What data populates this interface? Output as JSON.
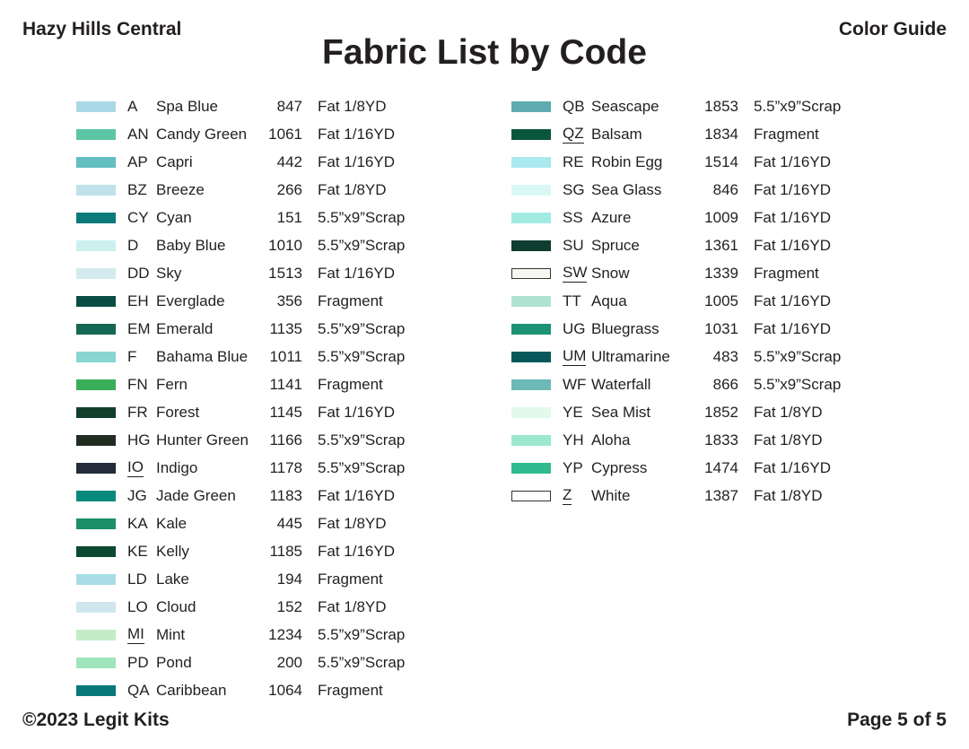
{
  "header": {
    "brand": "Hazy Hills Central",
    "guide": "Color Guide",
    "title": "Fabric List by Code"
  },
  "footer": {
    "copyright": "©2023 Legit Kits",
    "page": "Page 5 of 5"
  },
  "columns": [
    [
      {
        "code": "A",
        "name": "Spa Blue",
        "number": "847",
        "size": "Fat 1/8YD",
        "color": "#abd9e8"
      },
      {
        "code": "AN",
        "name": "Candy Green",
        "number": "1061",
        "size": "Fat 1/16YD",
        "color": "#5cc5a3"
      },
      {
        "code": "AP",
        "name": "Capri",
        "number": "442",
        "size": "Fat 1/16YD",
        "color": "#63c0c0"
      },
      {
        "code": "BZ",
        "name": "Breeze",
        "number": "266",
        "size": "Fat 1/8YD",
        "color": "#bfe2ea"
      },
      {
        "code": "CY",
        "name": "Cyan",
        "number": "151",
        "size": "5.5”x9”Scrap",
        "color": "#0a7b7a"
      },
      {
        "code": "D",
        "name": "Baby Blue",
        "number": "1010",
        "size": "5.5”x9”Scrap",
        "color": "#ccf0f0"
      },
      {
        "code": "DD",
        "name": "Sky",
        "number": "1513",
        "size": "Fat 1/16YD",
        "color": "#d3ebee"
      },
      {
        "code": "EH",
        "name": "Everglade",
        "number": "356",
        "size": "Fragment",
        "color": "#0a4d44"
      },
      {
        "code": "EM",
        "name": "Emerald",
        "number": "1135",
        "size": "5.5”x9”Scrap",
        "color": "#146752"
      },
      {
        "code": "F",
        "name": "Bahama Blue",
        "number": "1011",
        "size": "5.5”x9”Scrap",
        "color": "#88d6d1"
      },
      {
        "code": "FN",
        "name": "Fern",
        "number": "1141",
        "size": "Fragment",
        "color": "#3aae58"
      },
      {
        "code": "FR",
        "name": "Forest",
        "number": "1145",
        "size": "Fat 1/16YD",
        "color": "#123f2c"
      },
      {
        "code": "HG",
        "name": "Hunter Green",
        "number": "1166",
        "size": "5.5”x9”Scrap",
        "color": "#222d22"
      },
      {
        "code": "IO",
        "name": "Indigo",
        "number": "1178",
        "size": "5.5”x9”Scrap",
        "color": "#232c38",
        "underline": true
      },
      {
        "code": "JG",
        "name": "Jade Green",
        "number": "1183",
        "size": "Fat 1/16YD",
        "color": "#078a7b"
      },
      {
        "code": "KA",
        "name": "Kale",
        "number": "445",
        "size": "Fat 1/8YD",
        "color": "#1b8e68"
      },
      {
        "code": "KE",
        "name": "Kelly",
        "number": "1185",
        "size": "Fat 1/16YD",
        "color": "#0c4931"
      },
      {
        "code": "LD",
        "name": "Lake",
        "number": "194",
        "size": "Fragment",
        "color": "#a8dde6"
      },
      {
        "code": "LO",
        "name": "Cloud",
        "number": "152",
        "size": "Fat 1/8YD",
        "color": "#cfe6ee"
      },
      {
        "code": "MI",
        "name": "Mint",
        "number": "1234",
        "size": "5.5”x9”Scrap",
        "color": "#c3ecc6",
        "underline": true
      },
      {
        "code": "PD",
        "name": "Pond",
        "number": "200",
        "size": "5.5”x9”Scrap",
        "color": "#9fe4bc"
      },
      {
        "code": "QA",
        "name": "Caribbean",
        "number": "1064",
        "size": "Fragment",
        "color": "#0a7878"
      }
    ],
    [
      {
        "code": "QB",
        "name": "Seascape",
        "number": "1853",
        "size": "5.5”x9”Scrap",
        "color": "#5eabb0"
      },
      {
        "code": "QZ",
        "name": "Balsam",
        "number": "1834",
        "size": "Fragment",
        "color": "#0a553d",
        "underline": true
      },
      {
        "code": "RE",
        "name": "Robin Egg",
        "number": "1514",
        "size": "Fat 1/16YD",
        "color": "#a9e9f0"
      },
      {
        "code": "SG",
        "name": "Sea Glass",
        "number": "846",
        "size": "Fat 1/16YD",
        "color": "#d9f8f4"
      },
      {
        "code": "SS",
        "name": "Azure",
        "number": "1009",
        "size": "Fat 1/16YD",
        "color": "#a1ebe1"
      },
      {
        "code": "SU",
        "name": "Spruce",
        "number": "1361",
        "size": "Fat 1/16YD",
        "color": "#0f3d30"
      },
      {
        "code": "SW",
        "name": "Snow",
        "number": "1339",
        "size": "Fragment",
        "color": "#f8f6f1",
        "underline": true,
        "outline": true
      },
      {
        "code": "TT",
        "name": "Aqua",
        "number": "1005",
        "size": "Fat 1/16YD",
        "color": "#aee3d2"
      },
      {
        "code": "UG",
        "name": "Bluegrass",
        "number": "1031",
        "size": "Fat 1/16YD",
        "color": "#1d9274"
      },
      {
        "code": "UM",
        "name": "Ultramarine",
        "number": "483",
        "size": "5.5”x9”Scrap",
        "color": "#07585a",
        "underline": true
      },
      {
        "code": "WF",
        "name": "Waterfall",
        "number": "866",
        "size": "5.5”x9”Scrap",
        "color": "#6cb9b6"
      },
      {
        "code": "YE",
        "name": "Sea Mist",
        "number": "1852",
        "size": "Fat 1/8YD",
        "color": "#e2f9ec"
      },
      {
        "code": "YH",
        "name": "Aloha",
        "number": "1833",
        "size": "Fat 1/8YD",
        "color": "#9be7d0"
      },
      {
        "code": "YP",
        "name": "Cypress",
        "number": "1474",
        "size": "Fat 1/16YD",
        "color": "#2fbb8d"
      },
      {
        "code": "Z",
        "name": "White",
        "number": "1387",
        "size": "Fat 1/8YD",
        "color": "#ffffff",
        "underline": true,
        "outline": true
      }
    ]
  ]
}
